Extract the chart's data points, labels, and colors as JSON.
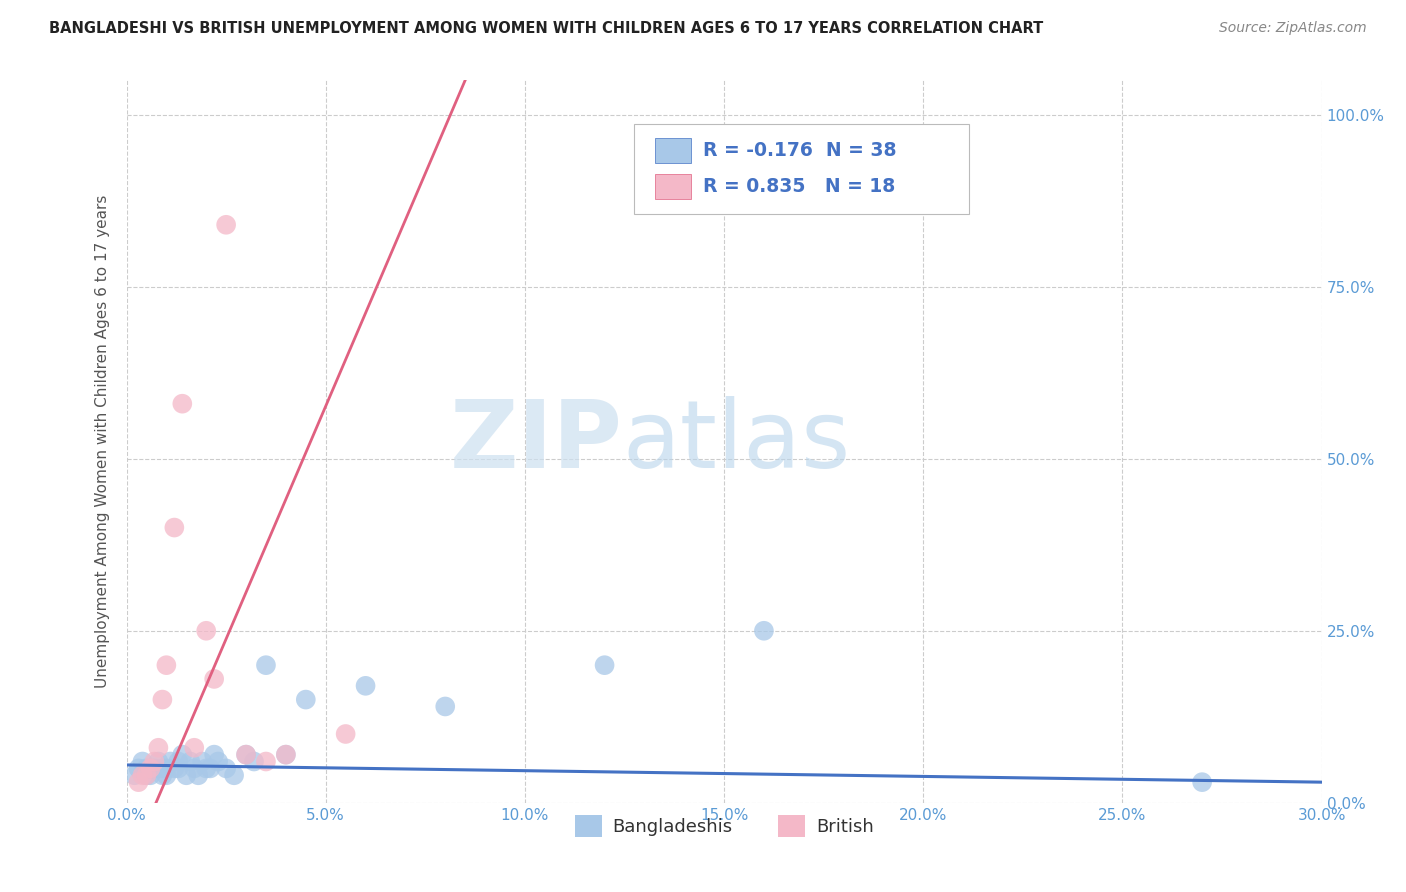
{
  "title": "BANGLADESHI VS BRITISH UNEMPLOYMENT AMONG WOMEN WITH CHILDREN AGES 6 TO 17 YEARS CORRELATION CHART",
  "source": "Source: ZipAtlas.com",
  "ylabel": "Unemployment Among Women with Children Ages 6 to 17 years",
  "xlim": [
    0.0,
    0.3
  ],
  "ylim": [
    0.0,
    1.05
  ],
  "xticks": [
    0.0,
    0.05,
    0.1,
    0.15,
    0.2,
    0.25,
    0.3
  ],
  "xticklabels": [
    "0.0%",
    "5.0%",
    "10.0%",
    "15.0%",
    "20.0%",
    "25.0%",
    "30.0%"
  ],
  "yticks": [
    0.0,
    0.25,
    0.5,
    0.75,
    1.0
  ],
  "yticklabels": [
    "0.0%",
    "25.0%",
    "50.0%",
    "75.0%",
    "100.0%"
  ],
  "bangladeshi_color": "#a8c8e8",
  "british_color": "#f4b8c8",
  "trend_bangladeshi_color": "#4472c4",
  "trend_british_color": "#e06080",
  "r_bangladeshi": -0.176,
  "n_bangladeshi": 38,
  "r_british": 0.835,
  "n_british": 18,
  "tick_color": "#5b9bd5",
  "bangladeshi_x": [
    0.002,
    0.003,
    0.004,
    0.005,
    0.005,
    0.006,
    0.007,
    0.008,
    0.009,
    0.009,
    0.01,
    0.01,
    0.011,
    0.012,
    0.013,
    0.013,
    0.014,
    0.015,
    0.016,
    0.017,
    0.018,
    0.019,
    0.02,
    0.021,
    0.022,
    0.023,
    0.025,
    0.027,
    0.03,
    0.032,
    0.035,
    0.04,
    0.045,
    0.06,
    0.08,
    0.12,
    0.16,
    0.27
  ],
  "bangladeshi_y": [
    0.04,
    0.05,
    0.06,
    0.05,
    0.04,
    0.04,
    0.05,
    0.06,
    0.04,
    0.05,
    0.05,
    0.04,
    0.06,
    0.05,
    0.05,
    0.06,
    0.07,
    0.04,
    0.06,
    0.05,
    0.04,
    0.06,
    0.05,
    0.05,
    0.07,
    0.06,
    0.05,
    0.04,
    0.07,
    0.06,
    0.2,
    0.07,
    0.15,
    0.17,
    0.14,
    0.2,
    0.25,
    0.03
  ],
  "british_x": [
    0.003,
    0.004,
    0.005,
    0.006,
    0.007,
    0.008,
    0.009,
    0.01,
    0.012,
    0.014,
    0.017,
    0.02,
    0.022,
    0.025,
    0.03,
    0.035,
    0.04,
    0.055
  ],
  "british_y": [
    0.03,
    0.04,
    0.04,
    0.05,
    0.06,
    0.08,
    0.15,
    0.2,
    0.4,
    0.58,
    0.08,
    0.25,
    0.18,
    0.84,
    0.07,
    0.06,
    0.07,
    0.1
  ]
}
